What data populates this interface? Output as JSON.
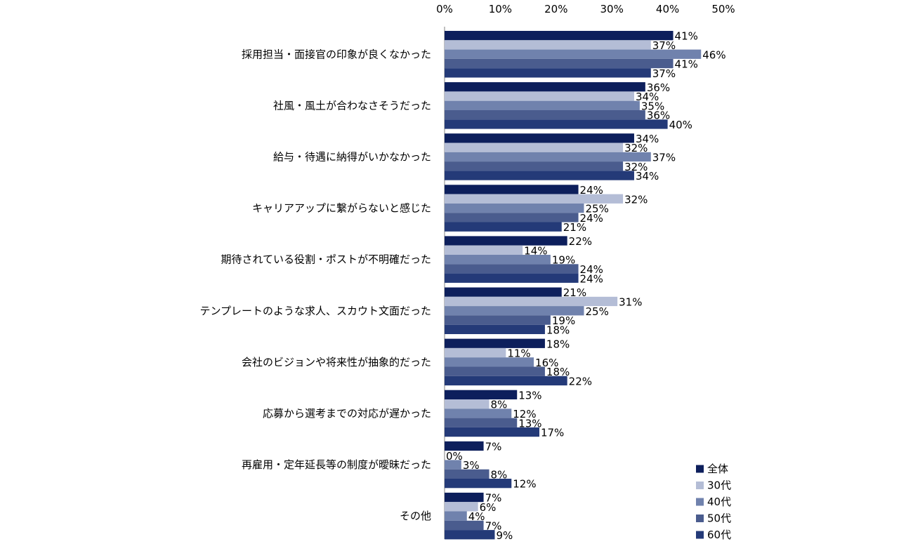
{
  "chart_data": {
    "type": "bar",
    "orientation": "horizontal",
    "x_ticks": [
      "0%",
      "10%",
      "20%",
      "30%",
      "40%",
      "50%"
    ],
    "xlim": [
      0,
      50
    ],
    "unit": "%",
    "grid": false,
    "legend_position": "bottom-right",
    "categories": [
      "採用担当・面接官の印象が良くなかった",
      "社風・風土が合わなさそうだった",
      "給与・待遇に納得がいかなかった",
      "キャリアアップに繋がらないと感じた",
      "期待されている役割・ポストが不明確だった",
      "テンプレートのような求人、スカウト文面だった",
      "会社のビジョンや将来性が抽象的だった",
      "応募から選考までの対応が遅かった",
      "再雇用・定年延長等の制度が曖昧だった",
      "その他"
    ],
    "series": [
      {
        "name": "全体",
        "color": "#0d1f5c",
        "values": [
          41,
          36,
          34,
          24,
          22,
          21,
          18,
          13,
          7,
          7
        ]
      },
      {
        "name": "30代",
        "color": "#b4bdd6",
        "values": [
          37,
          34,
          32,
          32,
          14,
          31,
          11,
          8,
          0,
          6
        ]
      },
      {
        "name": "40代",
        "color": "#7082ad",
        "values": [
          46,
          35,
          37,
          25,
          19,
          25,
          16,
          12,
          3,
          4
        ]
      },
      {
        "name": "50代",
        "color": "#4a5c8e",
        "values": [
          41,
          36,
          32,
          24,
          24,
          19,
          18,
          13,
          8,
          7
        ]
      },
      {
        "name": "60代",
        "color": "#243a78",
        "values": [
          37,
          40,
          34,
          21,
          24,
          18,
          22,
          17,
          12,
          9
        ]
      }
    ]
  }
}
